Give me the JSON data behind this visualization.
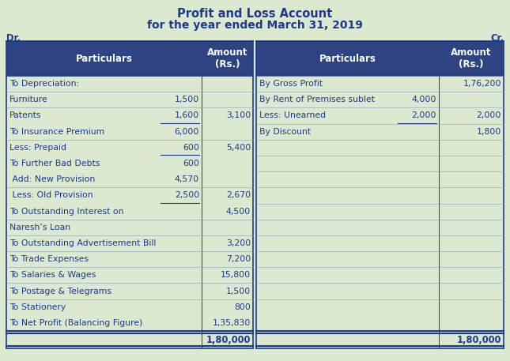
{
  "title_line1": "Profit and Loss Account",
  "title_line2": "for the year ended March 31, 2019",
  "dr_label": "Dr.",
  "cr_label": "Cr.",
  "bg_color": "#dde8d0",
  "header_bg": "#2e4482",
  "header_text_color": "#ffffff",
  "body_text_color": "#1a3a8f",
  "title_color": "#1a3a8f",
  "header_font_size": 8.5,
  "body_font_size": 7.8,
  "title_font_size": 10.5,
  "left_rows": [
    {
      "col1": "To Depreciation:",
      "col2": "",
      "col3": "",
      "underline2": false
    },
    {
      "col1": "Furniture",
      "col2": "1,500",
      "col3": "",
      "underline2": false
    },
    {
      "col1": "Patents",
      "col2": "1,600",
      "col3": "3,100",
      "underline2": true
    },
    {
      "col1": "To Insurance Premium",
      "col2": "6,000",
      "col3": "",
      "underline2": false
    },
    {
      "col1": "Less: Prepaid",
      "col2": "600",
      "col3": "5,400",
      "underline2": true
    },
    {
      "col1": "To Further Bad Debts",
      "col2": "600",
      "col3": "",
      "underline2": false
    },
    {
      "col1": " Add: New Provision",
      "col2": "4,570",
      "col3": "",
      "underline2": false
    },
    {
      "col1": " Less: Old Provision",
      "col2": "2,500",
      "col3": "2,670",
      "underline2": true
    },
    {
      "col1": "To Outstanding Interest on",
      "col2": "",
      "col3": "4,500",
      "underline2": false
    },
    {
      "col1": "Naresh’s Loan",
      "col2": "",
      "col3": "",
      "underline2": false
    },
    {
      "col1": "To Outstanding Advertisement Bill",
      "col2": "",
      "col3": "3,200",
      "underline2": false
    },
    {
      "col1": "To Trade Expenses",
      "col2": "",
      "col3": "7,200",
      "underline2": false
    },
    {
      "col1": "To Salaries & Wages",
      "col2": "",
      "col3": "15,800",
      "underline2": false
    },
    {
      "col1": "To Postage & Telegrams",
      "col2": "",
      "col3": "1,500",
      "underline2": false
    },
    {
      "col1": "To Stationery",
      "col2": "",
      "col3": "800",
      "underline2": false
    },
    {
      "col1": "To Net Profit (Balancing Figure)",
      "col2": "",
      "col3": "1,35,830",
      "underline2": false
    }
  ],
  "right_rows": [
    {
      "col1": "By Gross Profit",
      "col2": "",
      "col3": "1,76,200",
      "underline2": false
    },
    {
      "col1": "By Rent of Premises sublet",
      "col2": "4,000",
      "col3": "",
      "underline2": false
    },
    {
      "col1": "Less: Unearned",
      "col2": "2,000",
      "col3": "2,000",
      "underline2": true
    },
    {
      "col1": "By Discount",
      "col2": "",
      "col3": "1,800",
      "underline2": false
    },
    {
      "col1": "",
      "col2": "",
      "col3": "",
      "underline2": false
    },
    {
      "col1": "",
      "col2": "",
      "col3": "",
      "underline2": false
    },
    {
      "col1": "",
      "col2": "",
      "col3": "",
      "underline2": false
    },
    {
      "col1": "",
      "col2": "",
      "col3": "",
      "underline2": false
    },
    {
      "col1": "",
      "col2": "",
      "col3": "",
      "underline2": false
    },
    {
      "col1": "",
      "col2": "",
      "col3": "",
      "underline2": false
    },
    {
      "col1": "",
      "col2": "",
      "col3": "",
      "underline2": false
    },
    {
      "col1": "",
      "col2": "",
      "col3": "",
      "underline2": false
    },
    {
      "col1": "",
      "col2": "",
      "col3": "",
      "underline2": false
    },
    {
      "col1": "",
      "col2": "",
      "col3": "",
      "underline2": false
    },
    {
      "col1": "",
      "col2": "",
      "col3": "",
      "underline2": false
    },
    {
      "col1": "",
      "col2": "",
      "col3": "",
      "underline2": false
    }
  ],
  "total_left": "1,80,000",
  "total_right": "1,80,000"
}
